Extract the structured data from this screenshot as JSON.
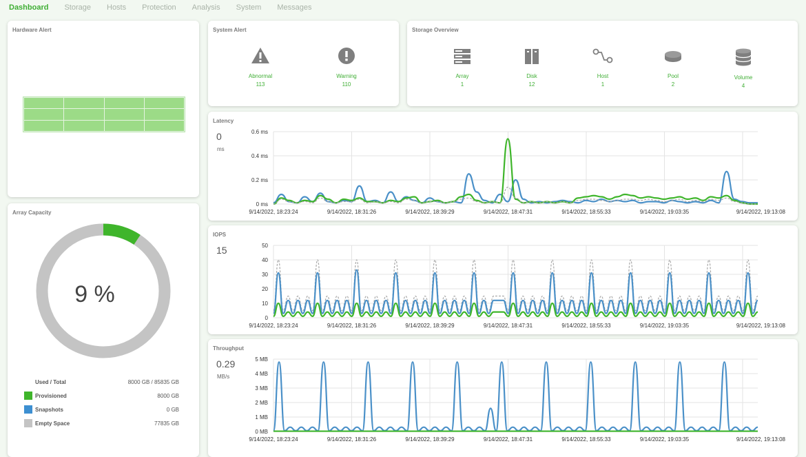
{
  "nav": {
    "items": [
      "Dashboard",
      "Storage",
      "Hosts",
      "Protection",
      "Analysis",
      "System",
      "Messages"
    ],
    "active": "Dashboard"
  },
  "hardware_alert": {
    "title": "Hardware Alert"
  },
  "system_alert": {
    "title": "System Alert",
    "items": [
      {
        "label": "Abnormal",
        "value": "113",
        "icon": "warning-triangle-icon"
      },
      {
        "label": "Warning",
        "value": "110",
        "icon": "exclamation-circle-icon"
      }
    ]
  },
  "storage_overview": {
    "title": "Storage Overview",
    "items": [
      {
        "label": "Array",
        "value": "1",
        "icon": "array-icon"
      },
      {
        "label": "Disk",
        "value": "12",
        "icon": "disk-icon"
      },
      {
        "label": "Host",
        "value": "1",
        "icon": "host-icon"
      },
      {
        "label": "Pool",
        "value": "2",
        "icon": "pool-icon"
      },
      {
        "label": "Volume",
        "value": "4",
        "icon": "volume-icon"
      }
    ]
  },
  "array_capacity": {
    "title": "Array Capacity",
    "percent_text": "9 %",
    "used_fraction": 0.093,
    "rows": [
      {
        "label": "Used / Total",
        "value": "8000 GB / 85835 GB",
        "color": null
      },
      {
        "label": "Provisioned",
        "value": "8000 GB",
        "color": "#3fb52b"
      },
      {
        "label": "Snapshots",
        "value": "0 GB",
        "color": "#3d8fd1"
      },
      {
        "label": "Empty Space",
        "value": "77835 GB",
        "color": "#c4c4c4"
      }
    ]
  },
  "colors": {
    "accent": "#3fae34",
    "series_green": "#3fb52b",
    "series_blue": "#4a90c8",
    "series_gray": "#a8a8a8"
  },
  "chart_data": [
    {
      "type": "line",
      "title": "Latency",
      "current_value": "0",
      "current_unit": "ms",
      "y_ticks": [
        "0.6 ms",
        "0.4 ms",
        "0.2 ms",
        "0 ms"
      ],
      "ylim": [
        0,
        0.6
      ],
      "x_ticks": [
        "9/14/2022, 18:23:24",
        "9/14/2022, 18:31:26",
        "9/14/2022, 18:39:29",
        "9/14/2022, 18:47:31",
        "9/14/2022, 18:55:33",
        "9/14/2022, 19:03:35",
        "9/14/2022, 19:13:08"
      ],
      "series": [
        {
          "color": "#4a90c8",
          "values": [
            0.01,
            0.08,
            0.02,
            0.01,
            0.06,
            0.02,
            0.09,
            0.02,
            0.01,
            0.03,
            0.02,
            0.15,
            0.02,
            0.03,
            0.01,
            0.1,
            0.02,
            0.06,
            0.03,
            0.01,
            0.05,
            0.02,
            0.01,
            0.02,
            0.01,
            0.25,
            0.1,
            0.03,
            0.01,
            0.08,
            0.02,
            0.2,
            0.04,
            0.01,
            0.02,
            0.01,
            0.02,
            0.03,
            0.02,
            0.01,
            0.03,
            0.02,
            0.04,
            0.02,
            0.03,
            0.02,
            0.03,
            0.01,
            0.02,
            0.02,
            0.01,
            0.03,
            0.02,
            0.01,
            0.02,
            0.01,
            0.03,
            0.01,
            0.27,
            0.04,
            0.02,
            0.01,
            0.01
          ]
        },
        {
          "color": "#3fb52b",
          "values": [
            0.0,
            0.05,
            0.03,
            0.01,
            0.03,
            0.02,
            0.07,
            0.04,
            0.01,
            0.04,
            0.03,
            0.05,
            0.02,
            0.02,
            0.01,
            0.03,
            0.02,
            0.05,
            0.06,
            0.01,
            0.02,
            0.03,
            0.01,
            0.02,
            0.06,
            0.08,
            0.03,
            0.01,
            0.02,
            0.01,
            0.54,
            0.04,
            0.01,
            0.02,
            0.01,
            0.02,
            0.01,
            0.02,
            0.01,
            0.05,
            0.06,
            0.07,
            0.06,
            0.04,
            0.06,
            0.08,
            0.07,
            0.05,
            0.06,
            0.05,
            0.04,
            0.05,
            0.06,
            0.04,
            0.05,
            0.03,
            0.06,
            0.05,
            0.07,
            0.03,
            0.01,
            0.0,
            0.0
          ]
        },
        {
          "color": "#a8a8a8",
          "dashed": true,
          "values": [
            0.0,
            0.04,
            0.02,
            0.01,
            0.02,
            0.01,
            0.05,
            0.02,
            0.01,
            0.02,
            0.02,
            0.04,
            0.01,
            0.02,
            0.01,
            0.02,
            0.01,
            0.04,
            0.03,
            0.01,
            0.02,
            0.02,
            0.01,
            0.02,
            0.04,
            0.05,
            0.02,
            0.01,
            0.02,
            0.01,
            0.14,
            0.05,
            0.01,
            0.02,
            0.01,
            0.02,
            0.01,
            0.02,
            0.01,
            0.03,
            0.04,
            0.04,
            0.03,
            0.02,
            0.03,
            0.04,
            0.04,
            0.03,
            0.04,
            0.03,
            0.02,
            0.03,
            0.04,
            0.02,
            0.03,
            0.02,
            0.04,
            0.03,
            0.05,
            0.02,
            0.01,
            0.0,
            0.0
          ]
        }
      ]
    },
    {
      "type": "line",
      "title": "IOPS",
      "current_value": "15",
      "current_unit": "",
      "y_ticks": [
        "50",
        "40",
        "30",
        "20",
        "10",
        "0"
      ],
      "ylim": [
        0,
        50
      ],
      "x_ticks": [
        "9/14/2022, 18:23:24",
        "9/14/2022, 18:31:26",
        "9/14/2022, 18:39:29",
        "9/14/2022, 18:47:31",
        "9/14/2022, 18:55:33",
        "9/14/2022, 19:03:35",
        "9/14/2022, 19:13:08"
      ],
      "series": [
        {
          "color": "#a8a8a8",
          "dashed": true,
          "values": [
            5,
            40,
            5,
            15,
            5,
            15,
            5,
            15,
            5,
            40,
            5,
            15,
            5,
            15,
            5,
            15,
            5,
            40,
            5,
            15,
            5,
            15,
            5,
            15,
            5,
            40,
            5,
            15,
            5,
            15,
            5,
            15,
            5,
            40,
            5,
            15,
            5,
            15,
            5,
            15,
            5,
            40,
            5,
            15,
            5,
            15,
            15,
            15,
            5,
            40,
            5,
            15,
            5,
            15,
            5,
            15,
            5,
            40,
            5,
            15,
            5,
            15,
            5,
            15,
            5,
            40,
            5,
            15,
            5,
            15,
            5,
            15,
            5,
            40,
            5,
            15,
            5,
            15,
            5,
            15,
            5,
            40,
            5,
            15,
            5,
            15,
            5,
            15,
            5,
            40,
            5,
            15,
            5,
            15,
            5,
            15,
            5,
            40,
            5,
            15
          ]
        },
        {
          "color": "#4a90c8",
          "values": [
            3,
            31,
            3,
            12,
            3,
            12,
            3,
            12,
            3,
            31,
            3,
            12,
            3,
            12,
            3,
            12,
            3,
            33,
            3,
            12,
            3,
            12,
            3,
            12,
            3,
            31,
            3,
            12,
            3,
            12,
            3,
            12,
            3,
            31,
            3,
            12,
            3,
            12,
            3,
            12,
            3,
            31,
            3,
            12,
            3,
            12,
            12,
            12,
            3,
            31,
            3,
            12,
            3,
            12,
            3,
            12,
            3,
            31,
            3,
            12,
            3,
            12,
            3,
            12,
            3,
            31,
            3,
            12,
            3,
            12,
            3,
            12,
            3,
            31,
            3,
            12,
            3,
            12,
            3,
            12,
            3,
            31,
            3,
            12,
            3,
            12,
            3,
            12,
            3,
            31,
            3,
            12,
            3,
            12,
            3,
            12,
            3,
            31,
            3,
            12
          ]
        },
        {
          "color": "#3fb52b",
          "values": [
            1,
            10,
            1,
            4,
            1,
            4,
            1,
            4,
            1,
            10,
            1,
            4,
            1,
            4,
            1,
            4,
            1,
            10,
            1,
            4,
            1,
            4,
            1,
            4,
            1,
            10,
            1,
            4,
            1,
            4,
            1,
            4,
            1,
            10,
            1,
            4,
            1,
            4,
            1,
            4,
            1,
            10,
            1,
            4,
            1,
            4,
            4,
            4,
            1,
            10,
            1,
            4,
            1,
            4,
            1,
            4,
            1,
            10,
            1,
            4,
            1,
            4,
            1,
            4,
            1,
            10,
            1,
            4,
            1,
            4,
            1,
            4,
            1,
            10,
            1,
            4,
            1,
            4,
            1,
            4,
            1,
            10,
            1,
            4,
            1,
            4,
            1,
            4,
            1,
            10,
            1,
            4,
            1,
            4,
            1,
            4,
            1,
            10,
            1,
            4
          ]
        }
      ]
    },
    {
      "type": "line",
      "title": "Throughput",
      "current_value": "0.29",
      "current_unit": "MB/s",
      "y_ticks": [
        "5 MB",
        "4 MB",
        "3 MB",
        "2 MB",
        "1 MB",
        "0 MB"
      ],
      "ylim": [
        0,
        5
      ],
      "x_ticks": [
        "9/14/2022, 18:23:24",
        "9/14/2022, 18:31:26",
        "9/14/2022, 18:39:29",
        "9/14/2022, 18:47:31",
        "9/14/2022, 18:55:33",
        "9/14/2022, 19:03:35",
        "9/14/2022, 19:13:08"
      ],
      "series": [
        {
          "color": "#4a90c8",
          "values": [
            0.05,
            4.8,
            0.05,
            0.3,
            0.05,
            0.3,
            0.05,
            0.3,
            0.05,
            4.8,
            0.05,
            0.3,
            0.05,
            0.3,
            0.05,
            0.3,
            0.05,
            4.8,
            0.05,
            0.3,
            0.05,
            0.3,
            0.05,
            0.3,
            0.05,
            4.8,
            0.05,
            0.3,
            0.05,
            0.3,
            0.05,
            0.3,
            0.05,
            4.8,
            0.05,
            0.3,
            0.05,
            0.3,
            0.05,
            1.6,
            0.05,
            4.8,
            0.05,
            0.3,
            0.05,
            0.3,
            0.05,
            0.3,
            0.05,
            4.8,
            0.05,
            0.3,
            0.05,
            0.3,
            0.05,
            0.3,
            0.05,
            4.8,
            0.05,
            0.3,
            0.05,
            0.3,
            0.05,
            0.3,
            0.05,
            4.8,
            0.05,
            0.3,
            0.05,
            0.3,
            0.05,
            0.3,
            0.05,
            4.8,
            0.05,
            0.3,
            0.05,
            0.3,
            0.05,
            0.3,
            0.05,
            4.8,
            0.05,
            0.3,
            0.05,
            0.3,
            0.05,
            0.3
          ]
        },
        {
          "color": "#3fb52b",
          "values": [
            0.02,
            0.02,
            0.02,
            0.02,
            0.02,
            0.02,
            0.02,
            0.02,
            0.02,
            0.02,
            0.02,
            0.02,
            0.02,
            0.02,
            0.02,
            0.02,
            0.02,
            0.02,
            0.02,
            0.02
          ]
        }
      ]
    }
  ]
}
